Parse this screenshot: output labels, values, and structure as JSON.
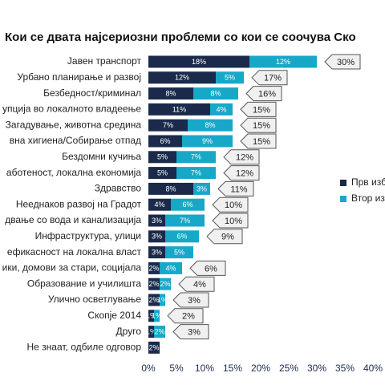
{
  "chart_data": {
    "type": "stacked-bar-horizontal",
    "title": "Кои се двата најсериозни проблеми со кои се соочува Ско",
    "categories": [
      "Јавен транспорт",
      "Урбано планирање и развој",
      "Безбедност/криминал",
      "упција во локалното владеење",
      "Загадување, животна средина",
      "вна хигиена/Собирање отпад",
      "Бездомни кучиња",
      "аботеност, локална економија",
      "Здравство",
      "Нееднаков развој на Градот",
      "двање со вода и канализација",
      "Инфраструктура, улици",
      "ефикасност на локална власт",
      "ики, домови за стари, социјала",
      "Образование и училишта",
      "Улично осветлување",
      "Скопје 2014",
      "Друго",
      "Не знаат, одбиле одговор"
    ],
    "series": [
      {
        "name": "Прв изб",
        "color": "#1b2a4b",
        "values": [
          18,
          12,
          8,
          11,
          7,
          6,
          5,
          5,
          8,
          4,
          3,
          3,
          3,
          2,
          2,
          2,
          1,
          1,
          2
        ],
        "value_labels": [
          "18%",
          "12%",
          "8%",
          "11%",
          "7%",
          "6%",
          "5%",
          "5%",
          "8%",
          "4%",
          "3%",
          "3%",
          "3%",
          "2%",
          "2%",
          "2%",
          "1%",
          "1%",
          "2%"
        ]
      },
      {
        "name": "Втор из",
        "color": "#17a8c8",
        "values": [
          12,
          5,
          8,
          4,
          8,
          9,
          7,
          7,
          3,
          6,
          7,
          6,
          5,
          4,
          2,
          1,
          1,
          2,
          null
        ],
        "value_labels": [
          "12%",
          "5%",
          "8%",
          "4%",
          "8%",
          "9%",
          "7%",
          "7%",
          "3%",
          "6%",
          "7%",
          "6%",
          "5%",
          "4%",
          "2%",
          "1%",
          "1%",
          "2%",
          null
        ]
      }
    ],
    "totals": {
      "values": [
        30,
        17,
        16,
        15,
        15,
        15,
        12,
        12,
        11,
        10,
        10,
        9,
        null,
        6,
        4,
        3,
        2,
        3,
        null
      ],
      "value_labels": [
        "30%",
        "17%",
        "16%",
        "15%",
        "15%",
        "15%",
        "12%",
        "12%",
        "11%",
        "10%",
        "10%",
        "9%",
        null,
        "6%",
        "4%",
        "3%",
        "2%",
        "3%",
        null
      ]
    },
    "xlim": [
      0,
      40
    ],
    "xticks": [
      {
        "value": 0,
        "label": "0%"
      },
      {
        "value": 5,
        "label": "5%"
      },
      {
        "value": 10,
        "label": "10%"
      },
      {
        "value": 15,
        "label": "15%"
      },
      {
        "value": 20,
        "label": "20%"
      },
      {
        "value": 25,
        "label": "25%"
      },
      {
        "value": 30,
        "label": "30%"
      },
      {
        "value": 35,
        "label": "35%"
      },
      {
        "value": 40,
        "label": "40%"
      }
    ]
  }
}
